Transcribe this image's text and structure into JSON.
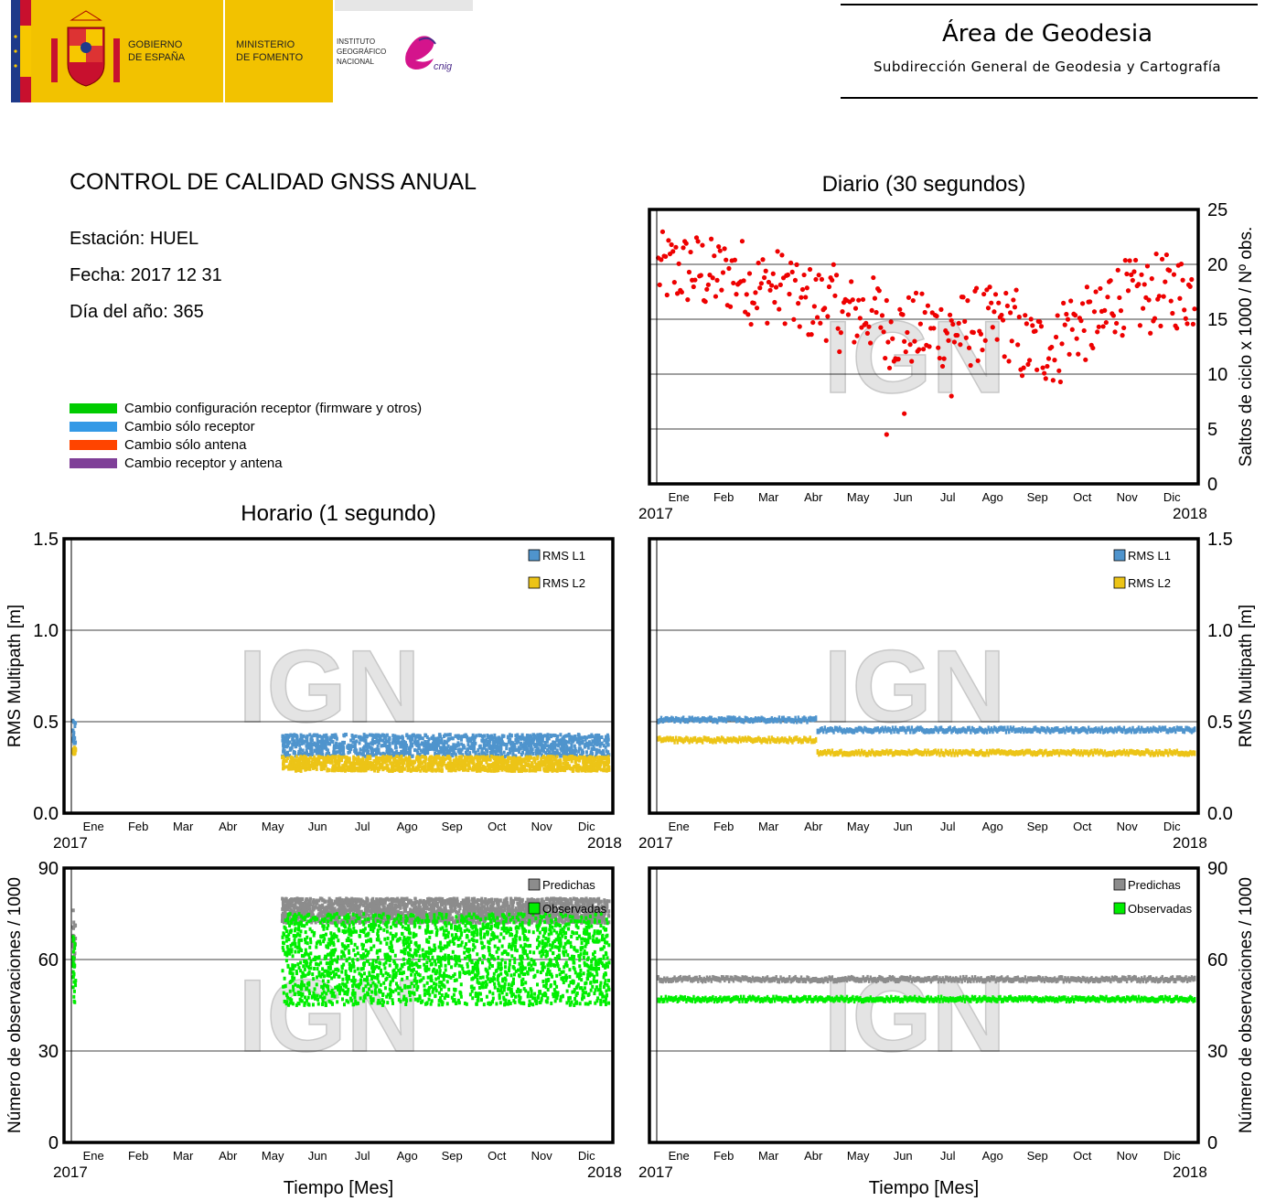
{
  "header": {
    "gobierno": [
      "GOBIERNO",
      "DE ESPAÑA"
    ],
    "ministerio": [
      "MINISTERIO",
      "DE FOMENTO"
    ],
    "instituto": [
      "INSTITUTO",
      "GEOGRÁFICO",
      "NACIONAL"
    ],
    "cnig_logo": "cnig",
    "area_title": "Área de Geodesia",
    "area_subtitle": "Subdirección General de Geodesia y Cartografía",
    "colors": {
      "spain_red": "#c8102e",
      "spain_yellow": "#f7c700",
      "eu_blue": "#1e3a8a",
      "ministry_yellow": "#f2c200"
    }
  },
  "report": {
    "title": "CONTROL DE CALIDAD GNSS ANUAL",
    "station": "Estación: HUEL",
    "date": "Fecha: 2017 12 31",
    "doy": "Día del año: 365"
  },
  "legend": [
    {
      "label": "Cambio configuración receptor (firmware y otros)",
      "color": "#00cc00"
    },
    {
      "label": "Cambio sólo receptor",
      "color": "#3399e6"
    },
    {
      "label": "Cambio sólo antena",
      "color": "#ff4400"
    },
    {
      "label": "Cambio receptor y antena",
      "color": "#7f3f98"
    }
  ],
  "titles": {
    "daily": "Diario (30 segundos)",
    "hourly": "Horario (1 segundo)",
    "xlabel": "Tiempo [Mes]"
  },
  "watermark": "IGN",
  "months": [
    "Ene",
    "Feb",
    "Mar",
    "Abr",
    "May",
    "Jun",
    "Jul",
    "Ago",
    "Sep",
    "Oct",
    "Nov",
    "Dic"
  ],
  "years": [
    "2017",
    "2018"
  ],
  "chart_data": [
    {
      "id": "daily_cycle_slips",
      "type": "scatter",
      "ylabel": "Saltos de ciclo x 1000 / Nº obs.",
      "ylim": [
        0,
        25
      ],
      "yticks": [
        "0",
        "5",
        "10",
        "15",
        "20",
        "25"
      ],
      "grid": true,
      "color": "#ee0000",
      "approx_monthly_mean": [
        19.5,
        19,
        18,
        16.5,
        15.5,
        14,
        14,
        14.5,
        12.5,
        14.5,
        17,
        17.5
      ],
      "spread": 3.5,
      "annotated_outliers": [
        {
          "day": 156,
          "value": 4.5
        },
        {
          "day": 168,
          "value": 6.4
        },
        {
          "day": 200,
          "value": 8
        }
      ]
    },
    {
      "id": "hourly_multipath",
      "type": "scatter",
      "ylabel": "RMS Multipath [m]",
      "ylim": [
        0,
        1.5
      ],
      "yticks": [
        "0.0",
        "0.5",
        "1.0",
        "1.5"
      ],
      "grid": true,
      "legend_position": "top-right",
      "series": [
        {
          "name": "RMS L1",
          "color": "#4f94cd",
          "segments": [
            {
              "from_day": 1,
              "to_day": 3,
              "low": 0.38,
              "high": 0.52
            },
            {
              "from_day": 143,
              "to_day": 365,
              "low": 0.31,
              "high": 0.43
            }
          ]
        },
        {
          "name": "RMS L2",
          "color": "#ecc417",
          "segments": [
            {
              "from_day": 1,
              "to_day": 3,
              "low": 0.32,
              "high": 0.36
            },
            {
              "from_day": 143,
              "to_day": 365,
              "low": 0.23,
              "high": 0.31
            }
          ]
        }
      ]
    },
    {
      "id": "daily_multipath",
      "type": "line",
      "ylabel": "RMS Multipath [m]",
      "ylim": [
        0,
        1.5
      ],
      "yticks": [
        "0.0",
        "0.5",
        "1.0",
        "1.5"
      ],
      "grid": true,
      "legend_position": "top-right",
      "series": [
        {
          "name": "RMS L1",
          "color": "#4f94cd",
          "segments": [
            {
              "from_day": 1,
              "to_day": 108,
              "value": 0.51
            },
            {
              "from_day": 109,
              "to_day": 365,
              "value": 0.455
            }
          ]
        },
        {
          "name": "RMS L2",
          "color": "#ecc417",
          "segments": [
            {
              "from_day": 1,
              "to_day": 108,
              "value": 0.4
            },
            {
              "from_day": 109,
              "to_day": 365,
              "value": 0.33
            }
          ]
        }
      ]
    },
    {
      "id": "hourly_observations",
      "type": "scatter",
      "ylabel": "Número de observaciones / 1000",
      "ylim": [
        0,
        90
      ],
      "yticks": [
        "0",
        "30",
        "60",
        "90"
      ],
      "grid": true,
      "legend_position": "top-right",
      "series": [
        {
          "name": "Predichas",
          "color": "#8c8c8c",
          "segments": [
            {
              "from_day": 1,
              "to_day": 3,
              "low": 58,
              "high": 78
            },
            {
              "from_day": 143,
              "to_day": 365,
              "low": 72,
              "high": 80
            }
          ]
        },
        {
          "name": "Observadas",
          "color": "#00ee00",
          "segments": [
            {
              "from_day": 1,
              "to_day": 3,
              "low": 45,
              "high": 68
            },
            {
              "from_day": 143,
              "to_day": 365,
              "low": 45,
              "high": 75
            }
          ]
        }
      ]
    },
    {
      "id": "daily_observations",
      "type": "line",
      "ylabel": "Número de observaciones / 1000",
      "ylim": [
        0,
        90
      ],
      "yticks": [
        "0",
        "30",
        "60",
        "90"
      ],
      "grid": true,
      "legend_position": "top-right",
      "series": [
        {
          "name": "Predichas",
          "color": "#8c8c8c",
          "segments": [
            {
              "from_day": 1,
              "to_day": 365,
              "value": 53.5
            }
          ]
        },
        {
          "name": "Observadas",
          "color": "#00ee00",
          "segments": [
            {
              "from_day": 1,
              "to_day": 365,
              "value": 47
            }
          ]
        }
      ]
    }
  ]
}
